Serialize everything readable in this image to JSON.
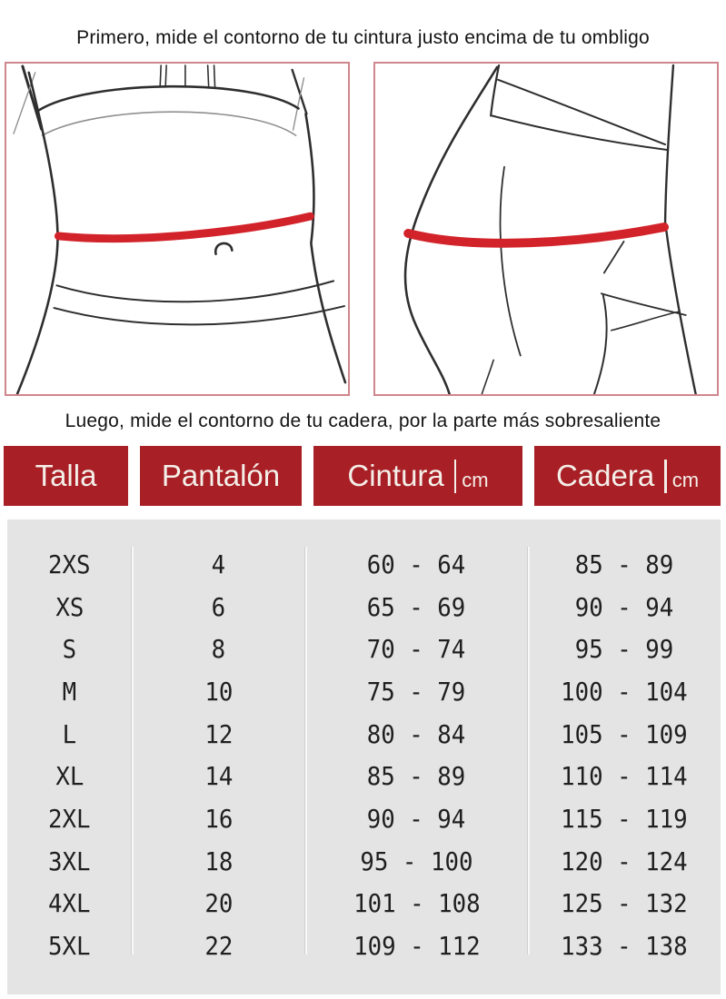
{
  "instructions": {
    "waist": "Primero, mide el contorno de tu cintura justo encima de tu ombligo",
    "hip": "Luego, mide el contorno de tu cadera, por la parte más sobresaliente"
  },
  "figures": {
    "waist": "front torso sketch with red waist measuring line above the navel",
    "hip": "side hip sketch with red measuring line over the fullest part"
  },
  "colors": {
    "header_red": "#a81f26",
    "measure_red": "#d2232a",
    "box_border": "#cf868c",
    "panel_gray": "#e4e4e4"
  },
  "table": {
    "headers": [
      {
        "key": "talla",
        "label": "Talla",
        "unit": null
      },
      {
        "key": "pantalon",
        "label": "Pantalón",
        "unit": null
      },
      {
        "key": "cintura",
        "label": "Cintura",
        "unit": "cm"
      },
      {
        "key": "cadera",
        "label": "Cadera",
        "unit": "cm"
      }
    ],
    "rows": [
      {
        "talla": "2XS",
        "pantalon": "4",
        "cintura": "60 - 64",
        "cadera": "85 - 89"
      },
      {
        "talla": "XS",
        "pantalon": "6",
        "cintura": "65 - 69",
        "cadera": "90 - 94"
      },
      {
        "talla": "S",
        "pantalon": "8",
        "cintura": "70 - 74",
        "cadera": "95 - 99"
      },
      {
        "talla": "M",
        "pantalon": "10",
        "cintura": "75 - 79",
        "cadera": "100 - 104"
      },
      {
        "talla": "L",
        "pantalon": "12",
        "cintura": "80 - 84",
        "cadera": "105 - 109"
      },
      {
        "talla": "XL",
        "pantalon": "14",
        "cintura": "85 - 89",
        "cadera": "110 - 114"
      },
      {
        "talla": "2XL",
        "pantalon": "16",
        "cintura": "90 - 94",
        "cadera": "115 - 119"
      },
      {
        "talla": "3XL",
        "pantalon": "18",
        "cintura": "95 - 100",
        "cadera": "120 - 124"
      },
      {
        "talla": "4XL",
        "pantalon": "20",
        "cintura": "101 - 108",
        "cadera": "125 - 132"
      },
      {
        "talla": "5XL",
        "pantalon": "22",
        "cintura": "109 - 112",
        "cadera": "133 - 138"
      }
    ]
  }
}
